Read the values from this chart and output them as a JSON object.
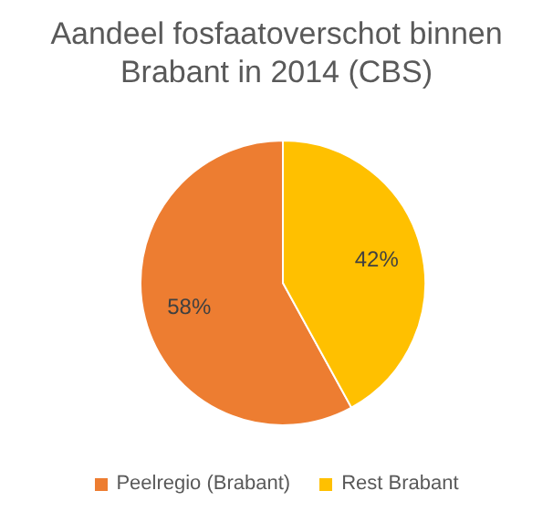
{
  "chart_data": {
    "type": "pie",
    "title": "Aandeel fosfaatoverschot binnen Brabant in 2014 (CBS)",
    "categories": [
      "Peelregio (Brabant)",
      "Rest Brabant"
    ],
    "values": [
      58,
      42
    ],
    "colors": [
      "#ed7d31",
      "#ffc000"
    ],
    "value_labels": [
      "58%",
      "42%"
    ],
    "legend": "bottom"
  }
}
